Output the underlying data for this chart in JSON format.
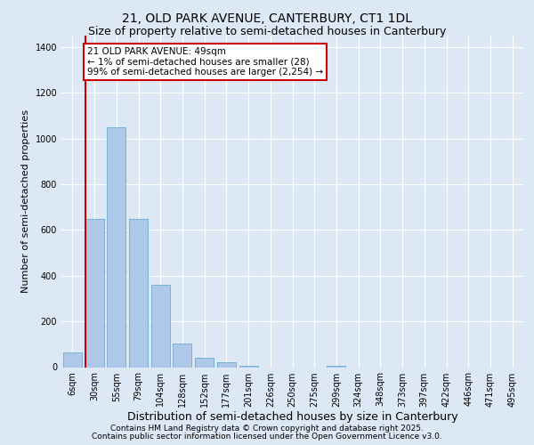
{
  "title": "21, OLD PARK AVENUE, CANTERBURY, CT1 1DL",
  "subtitle": "Size of property relative to semi-detached houses in Canterbury",
  "xlabel": "Distribution of semi-detached houses by size in Canterbury",
  "ylabel": "Number of semi-detached properties",
  "categories": [
    "6sqm",
    "30sqm",
    "55sqm",
    "79sqm",
    "104sqm",
    "128sqm",
    "152sqm",
    "177sqm",
    "201sqm",
    "226sqm",
    "250sqm",
    "275sqm",
    "299sqm",
    "324sqm",
    "348sqm",
    "373sqm",
    "397sqm",
    "422sqm",
    "446sqm",
    "471sqm",
    "495sqm"
  ],
  "values": [
    65,
    650,
    1050,
    650,
    360,
    105,
    42,
    20,
    5,
    0,
    0,
    0,
    5,
    0,
    0,
    0,
    0,
    0,
    0,
    0,
    0
  ],
  "bar_color": "#adc8e8",
  "bar_edge_color": "#6aaad4",
  "annotation_title": "21 OLD PARK AVENUE: 49sqm",
  "annotation_line1": "← 1% of semi-detached houses are smaller (28)",
  "annotation_line2": "99% of semi-detached houses are larger (2,254) →",
  "annotation_box_color": "#ffffff",
  "annotation_box_edge": "#cc0000",
  "red_line_color": "#cc0000",
  "ylim": [
    0,
    1450
  ],
  "yticks": [
    0,
    200,
    400,
    600,
    800,
    1000,
    1200,
    1400
  ],
  "footer1": "Contains HM Land Registry data © Crown copyright and database right 2025.",
  "footer2": "Contains public sector information licensed under the Open Government Licence v3.0.",
  "bg_color": "#dde8f5",
  "plot_bg_color": "#dde8f5",
  "title_fontsize": 10,
  "subtitle_fontsize": 9,
  "xlabel_fontsize": 9,
  "ylabel_fontsize": 8,
  "tick_fontsize": 7,
  "footer_fontsize": 6.5,
  "ann_fontsize": 7.5
}
